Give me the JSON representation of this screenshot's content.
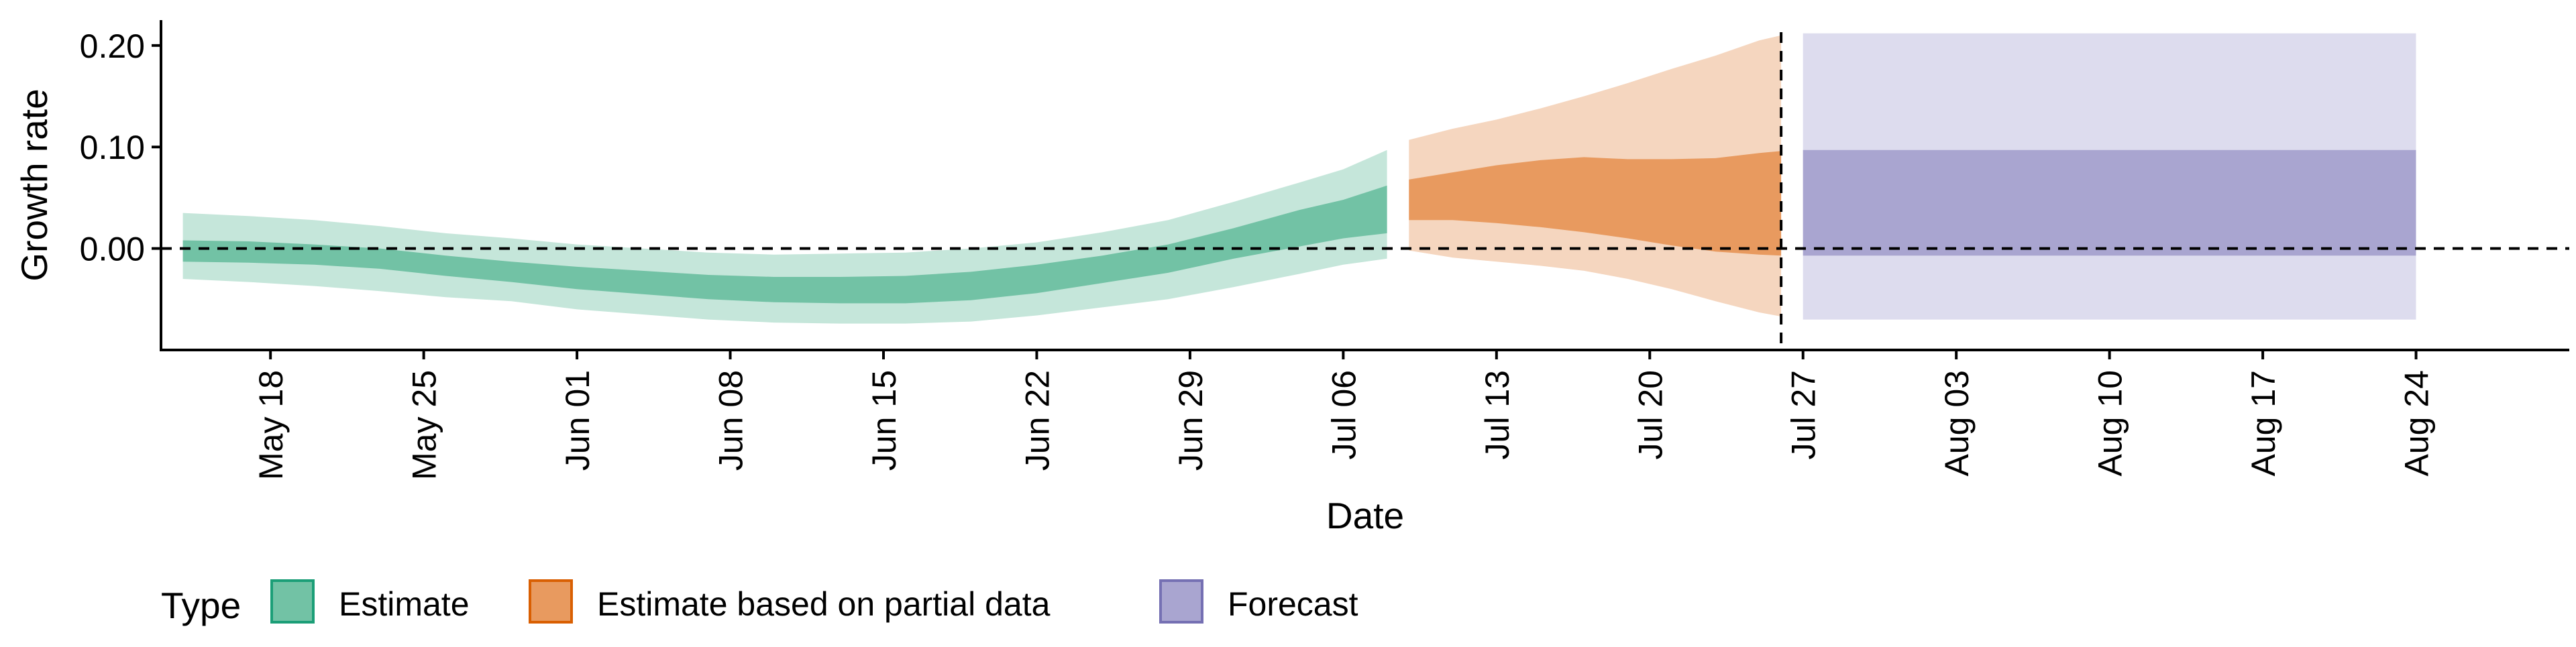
{
  "chart_data": {
    "type": "area",
    "title": "",
    "xlabel": "Date",
    "ylabel": "Growth rate",
    "date_start": "2020-05-14",
    "xlim_dates": [
      "2020-05-13",
      "2020-08-31"
    ],
    "ylim": [
      -0.1,
      0.225
    ],
    "y_ticks": [
      0.0,
      0.1,
      0.2
    ],
    "y_tick_labels": [
      "0.00",
      "0.10",
      "0.20"
    ],
    "x_ticks": [
      {
        "date": "2020-05-18",
        "label": "May 18"
      },
      {
        "date": "2020-05-25",
        "label": "May 25"
      },
      {
        "date": "2020-06-01",
        "label": "Jun 01"
      },
      {
        "date": "2020-06-08",
        "label": "Jun 08"
      },
      {
        "date": "2020-06-15",
        "label": "Jun 15"
      },
      {
        "date": "2020-06-22",
        "label": "Jun 22"
      },
      {
        "date": "2020-06-29",
        "label": "Jun 29"
      },
      {
        "date": "2020-07-06",
        "label": "Jul 06"
      },
      {
        "date": "2020-07-13",
        "label": "Jul 13"
      },
      {
        "date": "2020-07-20",
        "label": "Jul 20"
      },
      {
        "date": "2020-07-27",
        "label": "Jul 27"
      },
      {
        "date": "2020-08-03",
        "label": "Aug 03"
      },
      {
        "date": "2020-08-10",
        "label": "Aug 10"
      },
      {
        "date": "2020-08-17",
        "label": "Aug 17"
      },
      {
        "date": "2020-08-24",
        "label": "Aug 24"
      }
    ],
    "reference_lines": {
      "horizontal_y": 0,
      "vertical_date": "2020-07-26",
      "style": "dashed"
    },
    "grid": false,
    "legend": {
      "title": "Type",
      "position": "bottom-left",
      "entries": [
        {
          "label": "Estimate",
          "fill": "#72c2a5",
          "border": "#1b9e77"
        },
        {
          "label": "Estimate based on partial data",
          "fill": "#e89a5f",
          "border": "#d95f02"
        },
        {
          "label": "Forecast",
          "fill": "#a9a5d0",
          "border": "#7570b3"
        }
      ]
    },
    "series": [
      {
        "name": "Estimate",
        "outer_color": "#c5e6da",
        "inner_color": "#72c2a5",
        "points": [
          {
            "date": "2020-05-14",
            "lo90": -0.03,
            "lo50": -0.013,
            "hi50": 0.008,
            "hi90": 0.035
          },
          {
            "date": "2020-05-17",
            "lo90": -0.033,
            "lo50": -0.014,
            "hi50": 0.007,
            "hi90": 0.032
          },
          {
            "date": "2020-05-20",
            "lo90": -0.037,
            "lo50": -0.016,
            "hi50": 0.004,
            "hi90": 0.028
          },
          {
            "date": "2020-05-23",
            "lo90": -0.042,
            "lo50": -0.02,
            "hi50": 0.0,
            "hi90": 0.022
          },
          {
            "date": "2020-05-26",
            "lo90": -0.048,
            "lo50": -0.027,
            "hi50": -0.007,
            "hi90": 0.015
          },
          {
            "date": "2020-05-29",
            "lo90": -0.052,
            "lo50": -0.033,
            "hi50": -0.013,
            "hi90": 0.01
          },
          {
            "date": "2020-06-01",
            "lo90": -0.06,
            "lo50": -0.04,
            "hi50": -0.018,
            "hi90": 0.004
          },
          {
            "date": "2020-06-04",
            "lo90": -0.065,
            "lo50": -0.045,
            "hi50": -0.022,
            "hi90": 0.0
          },
          {
            "date": "2020-06-07",
            "lo90": -0.07,
            "lo50": -0.05,
            "hi50": -0.026,
            "hi90": -0.004
          },
          {
            "date": "2020-06-10",
            "lo90": -0.073,
            "lo50": -0.053,
            "hi50": -0.028,
            "hi90": -0.006
          },
          {
            "date": "2020-06-13",
            "lo90": -0.074,
            "lo50": -0.054,
            "hi50": -0.028,
            "hi90": -0.005
          },
          {
            "date": "2020-06-16",
            "lo90": -0.074,
            "lo50": -0.054,
            "hi50": -0.027,
            "hi90": -0.004
          },
          {
            "date": "2020-06-19",
            "lo90": -0.072,
            "lo50": -0.051,
            "hi50": -0.023,
            "hi90": 0.0
          },
          {
            "date": "2020-06-22",
            "lo90": -0.066,
            "lo50": -0.044,
            "hi50": -0.016,
            "hi90": 0.006
          },
          {
            "date": "2020-06-25",
            "lo90": -0.058,
            "lo50": -0.034,
            "hi50": -0.007,
            "hi90": 0.016
          },
          {
            "date": "2020-06-28",
            "lo90": -0.05,
            "lo50": -0.024,
            "hi50": 0.004,
            "hi90": 0.028
          },
          {
            "date": "2020-07-01",
            "lo90": -0.038,
            "lo50": -0.01,
            "hi50": 0.02,
            "hi90": 0.046
          },
          {
            "date": "2020-07-04",
            "lo90": -0.025,
            "lo50": 0.002,
            "hi50": 0.038,
            "hi90": 0.065
          },
          {
            "date": "2020-07-06",
            "lo90": -0.016,
            "lo50": 0.01,
            "hi50": 0.048,
            "hi90": 0.078
          },
          {
            "date": "2020-07-08",
            "lo90": -0.01,
            "lo50": 0.015,
            "hi50": 0.062,
            "hi90": 0.097
          }
        ]
      },
      {
        "name": "Estimate based on partial data",
        "outer_color": "#f5d6bf",
        "inner_color": "#e89a5f",
        "points": [
          {
            "date": "2020-07-09",
            "lo90": -0.002,
            "lo50": 0.028,
            "hi50": 0.068,
            "hi90": 0.107
          },
          {
            "date": "2020-07-11",
            "lo90": -0.009,
            "lo50": 0.028,
            "hi50": 0.075,
            "hi90": 0.118
          },
          {
            "date": "2020-07-13",
            "lo90": -0.013,
            "lo50": 0.025,
            "hi50": 0.082,
            "hi90": 0.127
          },
          {
            "date": "2020-07-15",
            "lo90": -0.017,
            "lo50": 0.021,
            "hi50": 0.087,
            "hi90": 0.138
          },
          {
            "date": "2020-07-17",
            "lo90": -0.022,
            "lo50": 0.016,
            "hi50": 0.09,
            "hi90": 0.15
          },
          {
            "date": "2020-07-19",
            "lo90": -0.03,
            "lo50": 0.01,
            "hi50": 0.088,
            "hi90": 0.163
          },
          {
            "date": "2020-07-21",
            "lo90": -0.04,
            "lo50": 0.003,
            "hi50": 0.088,
            "hi90": 0.177
          },
          {
            "date": "2020-07-23",
            "lo90": -0.052,
            "lo50": -0.003,
            "hi50": 0.089,
            "hi90": 0.19
          },
          {
            "date": "2020-07-25",
            "lo90": -0.063,
            "lo50": -0.006,
            "hi50": 0.094,
            "hi90": 0.205
          },
          {
            "date": "2020-07-26",
            "lo90": -0.067,
            "lo50": -0.007,
            "hi50": 0.096,
            "hi90": 0.21
          }
        ]
      },
      {
        "name": "Forecast",
        "outer_color": "#dddcee",
        "inner_color": "#a9a5d0",
        "points": [
          {
            "date": "2020-07-27",
            "lo90": -0.07,
            "lo50": -0.007,
            "hi50": 0.097,
            "hi90": 0.212
          },
          {
            "date": "2020-08-24",
            "lo90": -0.07,
            "lo50": -0.007,
            "hi50": 0.097,
            "hi90": 0.212
          }
        ]
      }
    ]
  }
}
